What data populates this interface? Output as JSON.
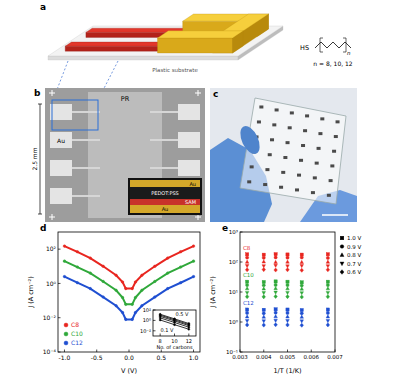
{
  "figure": {
    "a": {
      "label": "a",
      "substrate": "Plastic substrate",
      "molecule": {
        "head": "HS",
        "subscript": "n",
        "caption": "n = 8, 10, 12"
      }
    },
    "b": {
      "label": "b",
      "region": "PR",
      "pad": "Au",
      "scale": "2.5 mm",
      "inset": [
        {
          "text": "Au",
          "color": "#d4a82a"
        },
        {
          "text": "PEDOT:PSS",
          "color": "#1b1b1b"
        },
        {
          "text": "SAM",
          "color": "#c8322a"
        },
        {
          "text": "Au",
          "color": "#d4a82a"
        }
      ]
    },
    "c": {
      "label": "c"
    }
  },
  "chart_data": [
    {
      "type": "line",
      "label": "d",
      "x_label": "V (V)",
      "y_label": "J (A cm⁻²)",
      "log": "y",
      "legend": "lower left",
      "x": [
        -1.0,
        -0.8,
        -0.6,
        -0.4,
        -0.2,
        -0.1,
        -0.05,
        0.05,
        0.1,
        0.2,
        0.4,
        0.6,
        0.8,
        1.0
      ],
      "xlim": [
        -1.1,
        1.1
      ],
      "xticks": [
        {
          "value": -1,
          "label": "-1.0"
        },
        {
          "value": -0.5,
          "label": "-0.5"
        },
        {
          "value": 0,
          "label": "0.0"
        },
        {
          "value": 0.5,
          "label": "0.5"
        },
        {
          "value": 1,
          "label": "1.0"
        }
      ],
      "ylim": [
        0.0001,
        1000
      ],
      "yticks": [
        {
          "value": 0.0001,
          "label": "10⁻⁴"
        },
        {
          "value": 0.01,
          "label": "10⁻²"
        },
        {
          "value": 1,
          "label": "10⁰"
        },
        {
          "value": 100,
          "label": "10²"
        }
      ],
      "series": [
        {
          "name": "C8",
          "color": "#e8251f",
          "marker": "circle",
          "values": [
            150,
            70,
            30,
            10,
            3,
            1.2,
            0.5,
            0.5,
            1.2,
            3,
            10,
            30,
            70,
            150
          ]
        },
        {
          "name": "C10",
          "color": "#2fa83a",
          "marker": "circle",
          "values": [
            20,
            9,
            4,
            1.3,
            0.4,
            0.15,
            0.06,
            0.06,
            0.15,
            0.4,
            1.3,
            4,
            9,
            20
          ]
        },
        {
          "name": "C12",
          "color": "#1f4fd1",
          "marker": "circle",
          "values": [
            2.5,
            1.1,
            0.5,
            0.16,
            0.05,
            0.02,
            0.008,
            0.008,
            0.02,
            0.05,
            0.16,
            0.5,
            1.1,
            2.5
          ]
        }
      ],
      "inset": {
        "type": "line",
        "x_label": "No. of carbons",
        "log": "y",
        "x": [
          8,
          10,
          12
        ],
        "xlim": [
          7,
          13
        ],
        "xticks": [
          8,
          10,
          12
        ],
        "ylim": [
          0.001,
          100
        ],
        "yticks": [
          {
            "value": 0.01,
            "label": "10⁻²"
          },
          {
            "value": 1,
            "label": "10⁰"
          },
          {
            "value": 100,
            "label": "10²"
          }
        ],
        "color": "#000000",
        "marker": "circle",
        "series": [
          {
            "name": "0.5 V",
            "values": [
              15,
              2,
              0.25
            ]
          },
          {
            "values": [
              10,
              1.3,
              0.16
            ]
          },
          {
            "values": [
              6,
              0.8,
              0.1
            ]
          },
          {
            "values": [
              3,
              0.4,
              0.05
            ]
          },
          {
            "name": "0.1 V",
            "values": [
              1.2,
              0.15,
              0.02
            ]
          }
        ]
      }
    },
    {
      "type": "scatter",
      "label": "e",
      "x_label": "1/T (1/K)",
      "y_label": "J (A cm⁻²)",
      "log": "y",
      "legend": "right",
      "x": [
        0.0033,
        0.004,
        0.0045,
        0.005,
        0.0056,
        0.0067
      ],
      "xlim": [
        0.003,
        0.007
      ],
      "xticks": [
        0.003,
        0.004,
        0.005,
        0.006,
        0.007
      ],
      "ylim": [
        0.1,
        1000
      ],
      "yticks": [
        {
          "value": 0.1,
          "label": "10⁻¹"
        },
        {
          "value": 1,
          "label": "10⁰"
        },
        {
          "value": 10,
          "label": "10¹"
        },
        {
          "value": 100,
          "label": "10²"
        },
        {
          "value": 1000,
          "label": "10³"
        }
      ],
      "series": [
        {
          "name": "1.0 V",
          "marker": "square"
        },
        {
          "name": "0.9 V",
          "marker": "circle"
        },
        {
          "name": "0.8 V",
          "marker": "triangle-up"
        },
        {
          "name": "0.7 V",
          "marker": "triangle-down"
        },
        {
          "name": "0.6 V",
          "marker": "diamond"
        }
      ],
      "groups": [
        {
          "name": "C8",
          "color": "#e8251f",
          "values": [
            [
              180,
              175,
              182,
              178,
              176,
              181
            ],
            [
              140,
              138,
              142,
              139,
              141,
              137
            ],
            [
              100,
              102,
              99,
              101,
              98,
              100
            ],
            [
              75,
              74,
              76,
              73,
              75,
              74
            ],
            [
              55,
              56,
              54,
              55,
              53,
              55
            ]
          ]
        },
        {
          "name": "C10",
          "color": "#2fa83a",
          "values": [
            [
              22,
              21.5,
              22.5,
              22,
              21,
              22
            ],
            [
              17,
              16.8,
              17.2,
              17,
              16.5,
              17
            ],
            [
              13,
              12.8,
              13.2,
              13,
              12.7,
              13
            ],
            [
              9.5,
              9.4,
              9.7,
              9.5,
              9.3,
              9.5
            ],
            [
              7,
              6.9,
              7.1,
              7,
              6.8,
              7
            ]
          ]
        },
        {
          "name": "C12",
          "color": "#1f4fd1",
          "values": [
            [
              2.6,
              2.55,
              2.65,
              2.6,
              2.5,
              2.6
            ],
            [
              2.0,
              1.95,
              2.05,
              2.0,
              1.95,
              2.0
            ],
            [
              1.5,
              1.48,
              1.52,
              1.5,
              1.47,
              1.5
            ],
            [
              1.1,
              1.08,
              1.12,
              1.1,
              1.07,
              1.1
            ],
            [
              0.8,
              0.79,
              0.81,
              0.8,
              0.78,
              0.8
            ]
          ]
        }
      ]
    }
  ]
}
